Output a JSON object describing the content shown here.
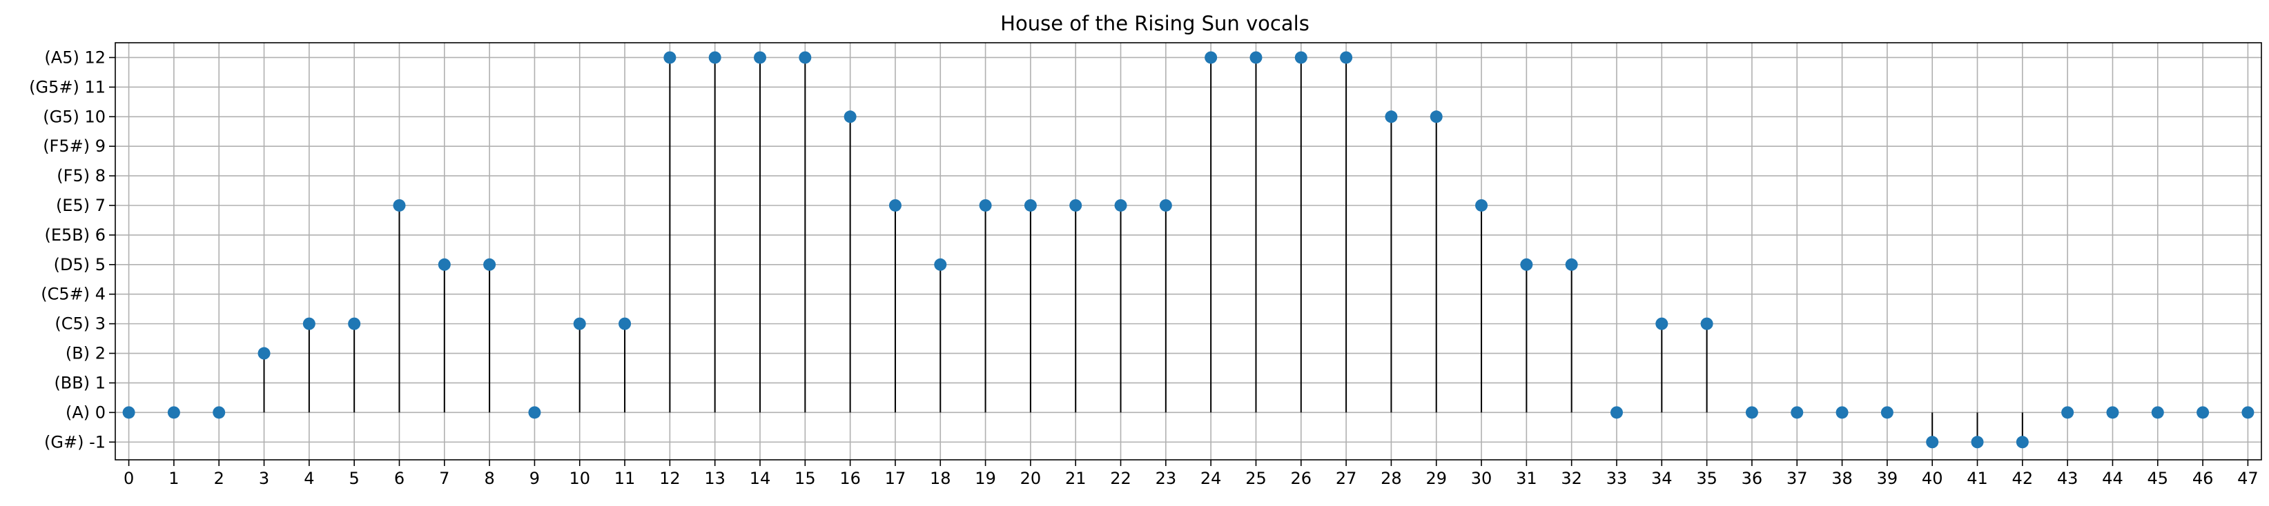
{
  "chart_data": {
    "type": "stem",
    "title": "House of the Rising Sun vocals",
    "xlabel": "",
    "ylabel": "",
    "grid": true,
    "legend": "none",
    "xlim": [
      -0.3,
      47.3
    ],
    "ylim": [
      -1.6,
      12.5
    ],
    "x_ticks": [
      0,
      1,
      2,
      3,
      4,
      5,
      6,
      7,
      8,
      9,
      10,
      11,
      12,
      13,
      14,
      15,
      16,
      17,
      18,
      19,
      20,
      21,
      22,
      23,
      24,
      25,
      26,
      27,
      28,
      29,
      30,
      31,
      32,
      33,
      34,
      35,
      36,
      37,
      38,
      39,
      40,
      41,
      42,
      43,
      44,
      45,
      46,
      47
    ],
    "y_ticks": [
      {
        "value": -1,
        "label": "(G#) -1"
      },
      {
        "value": 0,
        "label": "(A) 0"
      },
      {
        "value": 1,
        "label": "(BB) 1"
      },
      {
        "value": 2,
        "label": "(B) 2"
      },
      {
        "value": 3,
        "label": "(C5) 3"
      },
      {
        "value": 4,
        "label": "(C5#) 4"
      },
      {
        "value": 5,
        "label": "(D5) 5"
      },
      {
        "value": 6,
        "label": "(E5B) 6"
      },
      {
        "value": 7,
        "label": "(E5) 7"
      },
      {
        "value": 8,
        "label": "(F5) 8"
      },
      {
        "value": 9,
        "label": "(F5#) 9"
      },
      {
        "value": 10,
        "label": "(G5) 10"
      },
      {
        "value": 11,
        "label": "(G5#) 11"
      },
      {
        "value": 12,
        "label": "(A5) 12"
      }
    ],
    "x": [
      0,
      1,
      2,
      3,
      4,
      5,
      6,
      7,
      8,
      9,
      10,
      11,
      12,
      13,
      14,
      15,
      16,
      17,
      18,
      19,
      20,
      21,
      22,
      23,
      24,
      25,
      26,
      27,
      28,
      29,
      30,
      31,
      32,
      33,
      34,
      35,
      36,
      37,
      38,
      39,
      40,
      41,
      42,
      43,
      44,
      45,
      46,
      47
    ],
    "y": [
      0,
      0,
      0,
      2,
      3,
      3,
      7,
      5,
      5,
      0,
      3,
      3,
      12,
      12,
      12,
      12,
      10,
      7,
      5,
      7,
      7,
      7,
      7,
      7,
      12,
      12,
      12,
      12,
      10,
      10,
      7,
      5,
      5,
      0,
      3,
      3,
      0,
      0,
      0,
      0,
      -1,
      -1,
      -1,
      0,
      0,
      0,
      0,
      0
    ],
    "colors": {
      "marker": "#1f77b4",
      "stem": "#000000",
      "grid": "#b0b0b0"
    }
  }
}
